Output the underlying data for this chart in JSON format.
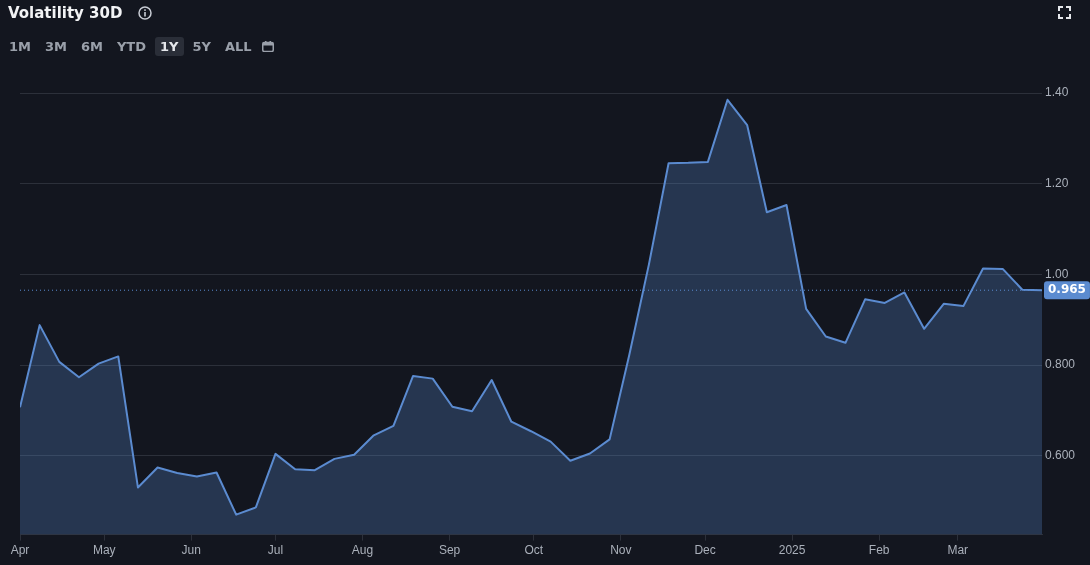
{
  "chart_data": {
    "type": "area",
    "title": "Volatility 30D",
    "annotations": [
      "1M",
      "3M",
      "6M",
      "YTD",
      "1Y",
      "5Y",
      "ALL"
    ],
    "x": [
      "2024-04-01",
      "2024-04-08",
      "2024-04-15",
      "2024-04-22",
      "2024-04-29",
      "2024-05-06",
      "2024-05-13",
      "2024-05-20",
      "2024-05-27",
      "2024-06-03",
      "2024-06-10",
      "2024-06-17",
      "2024-06-24",
      "2024-07-01",
      "2024-07-08",
      "2024-07-15",
      "2024-07-22",
      "2024-07-29",
      "2024-08-05",
      "2024-08-12",
      "2024-08-19",
      "2024-08-26",
      "2024-09-02",
      "2024-09-09",
      "2024-09-16",
      "2024-09-23",
      "2024-09-30",
      "2024-10-07",
      "2024-10-14",
      "2024-10-21",
      "2024-10-28",
      "2024-11-04",
      "2024-11-11",
      "2024-11-18",
      "2024-11-25",
      "2024-12-02",
      "2024-12-09",
      "2024-12-16",
      "2024-12-23",
      "2024-12-30",
      "2025-01-06",
      "2025-01-13",
      "2025-01-20",
      "2025-01-27",
      "2025-02-03",
      "2025-02-10",
      "2025-02-17",
      "2025-02-24",
      "2025-03-03",
      "2025-03-10",
      "2025-03-17",
      "2025-03-24",
      "2025-03-31"
    ],
    "series": [
      {
        "color": "#5b8bd0",
        "values": [
          0.707,
          0.888,
          0.807,
          0.773,
          0.803,
          0.819,
          0.53,
          0.574,
          0.562,
          0.554,
          0.563,
          0.47,
          0.486,
          0.604,
          0.57,
          0.568,
          0.593,
          0.602,
          0.645,
          0.666,
          0.776,
          0.77,
          0.708,
          0.698,
          0.767,
          0.675,
          0.654,
          0.631,
          0.589,
          0.605,
          0.636,
          0.822,
          1.022,
          1.245,
          1.246,
          1.248,
          1.385,
          1.329,
          1.137,
          1.153,
          0.924,
          0.863,
          0.849,
          0.945,
          0.937,
          0.96,
          0.88,
          0.935,
          0.93,
          1.013,
          1.012,
          0.966,
          0.965
        ]
      }
    ],
    "xlim": [
      "2024-04-01",
      "2025-03-31"
    ],
    "xticks": [
      {
        "value": "2024-04-01",
        "label": "Apr"
      },
      {
        "value": "2024-05-01",
        "label": "May"
      },
      {
        "value": "2024-06-01",
        "label": "Jun"
      },
      {
        "value": "2024-07-01",
        "label": "Jul"
      },
      {
        "value": "2024-08-01",
        "label": "Aug"
      },
      {
        "value": "2024-09-01",
        "label": "Sep"
      },
      {
        "value": "2024-10-01",
        "label": "Oct"
      },
      {
        "value": "2024-11-01",
        "label": "Nov"
      },
      {
        "value": "2024-12-01",
        "label": "Dec"
      },
      {
        "value": "2025-01-01",
        "label": "2025"
      },
      {
        "value": "2025-02-01",
        "label": "Feb"
      },
      {
        "value": "2025-03-01",
        "label": "Mar"
      }
    ],
    "ylim": [
      0.426,
      1.4
    ],
    "yticks": [
      {
        "value": 0.6,
        "label": "0.600"
      },
      {
        "value": 0.8,
        "label": "0.800"
      },
      {
        "value": 1.0,
        "label": "1.00"
      },
      {
        "value": 1.2,
        "label": "1.20"
      },
      {
        "value": 1.4,
        "label": "1.40"
      }
    ],
    "ref_lines": [
      {
        "axis": "y",
        "value": 0.965,
        "label": "0.965",
        "color": "#5b8bd0",
        "line_style": "dotted"
      }
    ],
    "grid": "y",
    "legend": false,
    "marker": "none",
    "line_style": "solid"
  }
}
